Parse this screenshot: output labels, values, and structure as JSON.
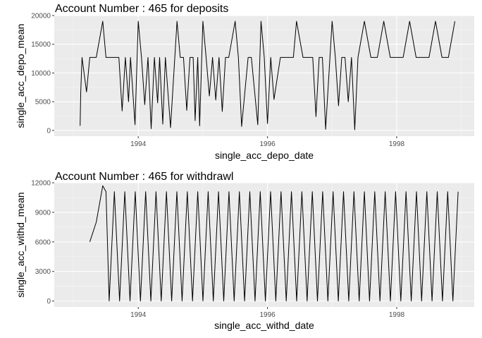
{
  "chart_data": [
    {
      "type": "line",
      "title": "Account Number : 465  for deposits",
      "xlabel": "single_acc_depo_date",
      "ylabel": "single_acc_depo_mean",
      "x_ticks": [
        "1994",
        "1996",
        "1998"
      ],
      "y_ticks": [
        "0",
        "5000",
        "10000",
        "15000",
        "20000"
      ],
      "xlim": [
        1992.7,
        1999.2
      ],
      "ylim": [
        -1000,
        20000
      ],
      "grid": true,
      "x": [
        1993.1,
        1993.11,
        1993.13,
        1993.2,
        1993.25,
        1993.35,
        1993.45,
        1993.5,
        1993.6,
        1993.7,
        1993.75,
        1993.8,
        1993.85,
        1993.88,
        1993.95,
        1994.0,
        1994.05,
        1994.1,
        1994.15,
        1994.2,
        1994.25,
        1994.3,
        1994.33,
        1994.38,
        1994.42,
        1994.5,
        1994.6,
        1994.65,
        1994.7,
        1994.75,
        1994.8,
        1994.85,
        1994.88,
        1994.92,
        1994.95,
        1995.0,
        1995.05,
        1995.1,
        1995.15,
        1995.2,
        1995.25,
        1995.3,
        1995.35,
        1995.4,
        1995.5,
        1995.55,
        1995.6,
        1995.7,
        1995.75,
        1995.85,
        1995.9,
        1995.95,
        1996.0,
        1996.05,
        1996.1,
        1996.2,
        1996.3,
        1996.4,
        1996.45,
        1996.55,
        1996.65,
        1996.7,
        1996.75,
        1996.8,
        1996.85,
        1996.9,
        1997.0,
        1997.05,
        1997.1,
        1997.15,
        1997.2,
        1997.25,
        1997.3,
        1997.35,
        1997.4,
        1997.5,
        1997.6,
        1997.7,
        1997.8,
        1997.9,
        1998.0,
        1998.1,
        1998.2,
        1998.3,
        1998.4,
        1998.5,
        1998.6,
        1998.7,
        1998.8,
        1998.9
      ],
      "y": [
        800,
        6700,
        12700,
        6700,
        12700,
        12700,
        19000,
        12700,
        12700,
        12700,
        3400,
        12700,
        5000,
        12700,
        1000,
        19000,
        12700,
        4500,
        12700,
        300,
        12700,
        4800,
        12700,
        1100,
        12700,
        500,
        19000,
        12700,
        12700,
        3500,
        12700,
        12700,
        1700,
        12700,
        800,
        19000,
        12700,
        6000,
        12700,
        5300,
        12700,
        3300,
        12700,
        12700,
        19000,
        12700,
        700,
        12700,
        12700,
        1000,
        19000,
        12700,
        1200,
        12700,
        5400,
        12700,
        12700,
        12700,
        19000,
        12700,
        12700,
        12700,
        2400,
        12700,
        12700,
        200,
        19000,
        12700,
        4300,
        12700,
        12700,
        5000,
        12700,
        100,
        12700,
        19000,
        12700,
        12700,
        19000,
        12700,
        12700,
        12700,
        19000,
        12700,
        12700,
        12700,
        19000,
        12700,
        12700,
        19000
      ]
    },
    {
      "type": "line",
      "title": "Account Number : 465  for withdrawl",
      "xlabel": "single_acc_withd_date",
      "ylabel": "single_acc_withd_mean",
      "x_ticks": [
        "1994",
        "1996",
        "1998"
      ],
      "y_ticks": [
        "0",
        "3000",
        "6000",
        "9000",
        "12000"
      ],
      "xlim": [
        1992.7,
        1999.2
      ],
      "ylim": [
        -600,
        12000
      ],
      "grid": true,
      "start_points": [
        [
          1993.25,
          6000
        ],
        [
          1993.35,
          8000
        ],
        [
          1993.45,
          11700
        ],
        [
          1993.5,
          11100
        ]
      ],
      "oscillation": {
        "x_start": 1993.55,
        "x_end": 1998.95,
        "count": 68,
        "high": 11100,
        "low": 0
      }
    }
  ]
}
